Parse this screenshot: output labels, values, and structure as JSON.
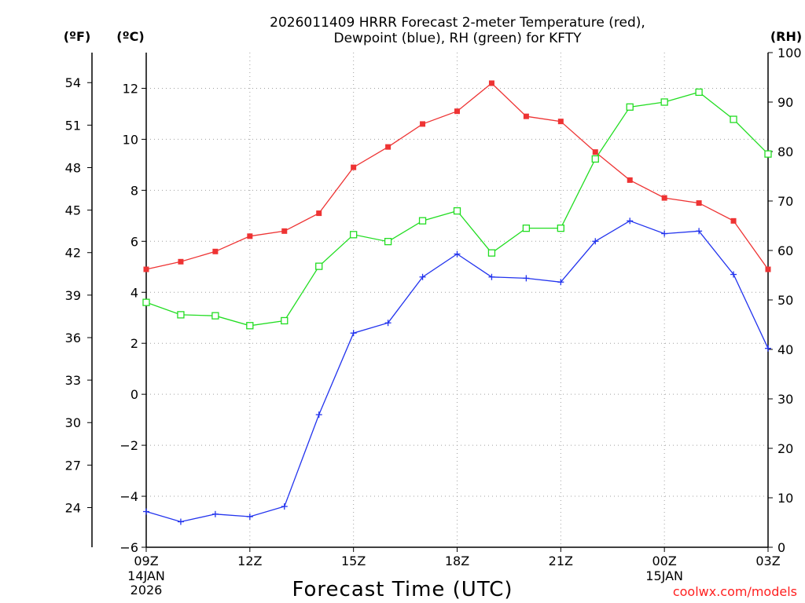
{
  "chart_data": {
    "type": "line",
    "title": [
      "2026011409 HRRR Forecast 2-meter Temperature (red),",
      "Dewpoint (blue), RH (green) for KFTY"
    ],
    "xlabel": "Forecast Time (UTC)",
    "units": {
      "fahrenheit": "(ºF)",
      "celsius": "(ºC)",
      "rh": "(RH)"
    },
    "x_ticks": [
      {
        "hour": 0,
        "label": "09Z",
        "sub": [
          "14JAN",
          "2026"
        ]
      },
      {
        "hour": 3,
        "label": "12Z",
        "sub": []
      },
      {
        "hour": 6,
        "label": "15Z",
        "sub": []
      },
      {
        "hour": 9,
        "label": "18Z",
        "sub": []
      },
      {
        "hour": 12,
        "label": "21Z",
        "sub": []
      },
      {
        "hour": 15,
        "label": "00Z",
        "sub": [
          "15JAN"
        ]
      },
      {
        "hour": 18,
        "label": "03Z",
        "sub": []
      }
    ],
    "xlim": [
      0,
      18
    ],
    "ylim_c": [
      -6,
      13.4
    ],
    "ylim_rh": [
      0,
      100
    ],
    "y_ticks_c": [
      -6,
      -4,
      -2,
      0,
      2,
      4,
      6,
      8,
      10,
      12
    ],
    "y_ticks_f": [
      24,
      27,
      30,
      33,
      36,
      39,
      42,
      45,
      48,
      51,
      54
    ],
    "y_ticks_rh": [
      0,
      10,
      20,
      30,
      40,
      50,
      60,
      70,
      80,
      90,
      100
    ],
    "hours": [
      0,
      1,
      2,
      3,
      4,
      5,
      6,
      7,
      8,
      9,
      10,
      11,
      12,
      13,
      14,
      15,
      16,
      17,
      18
    ],
    "series": [
      {
        "name": "Temperature",
        "color": "#ee3333",
        "marker": "filled-square",
        "axis": "celsius",
        "values": [
          4.9,
          5.2,
          5.6,
          6.2,
          6.4,
          7.1,
          8.9,
          9.7,
          10.6,
          11.1,
          12.2,
          10.9,
          10.7,
          9.5,
          8.4,
          7.7,
          7.5,
          6.8,
          4.9
        ]
      },
      {
        "name": "Dewpoint",
        "color": "#2233ee",
        "marker": "plus",
        "axis": "celsius",
        "values": [
          -4.6,
          -5.0,
          -4.7,
          -4.8,
          -4.4,
          -0.8,
          2.4,
          2.8,
          4.6,
          5.5,
          4.6,
          4.55,
          4.4,
          6.0,
          6.8,
          6.3,
          6.4,
          4.7,
          1.8
        ]
      },
      {
        "name": "RH",
        "color": "#22dd22",
        "marker": "open-square",
        "axis": "rh",
        "values": [
          49.5,
          47.0,
          46.8,
          44.8,
          45.8,
          56.8,
          63.2,
          61.8,
          66.0,
          68.0,
          59.5,
          64.5,
          64.5,
          78.5,
          89.0,
          90.0,
          92.0,
          86.5,
          79.5
        ]
      }
    ]
  },
  "credit": "coolwx.com/models"
}
